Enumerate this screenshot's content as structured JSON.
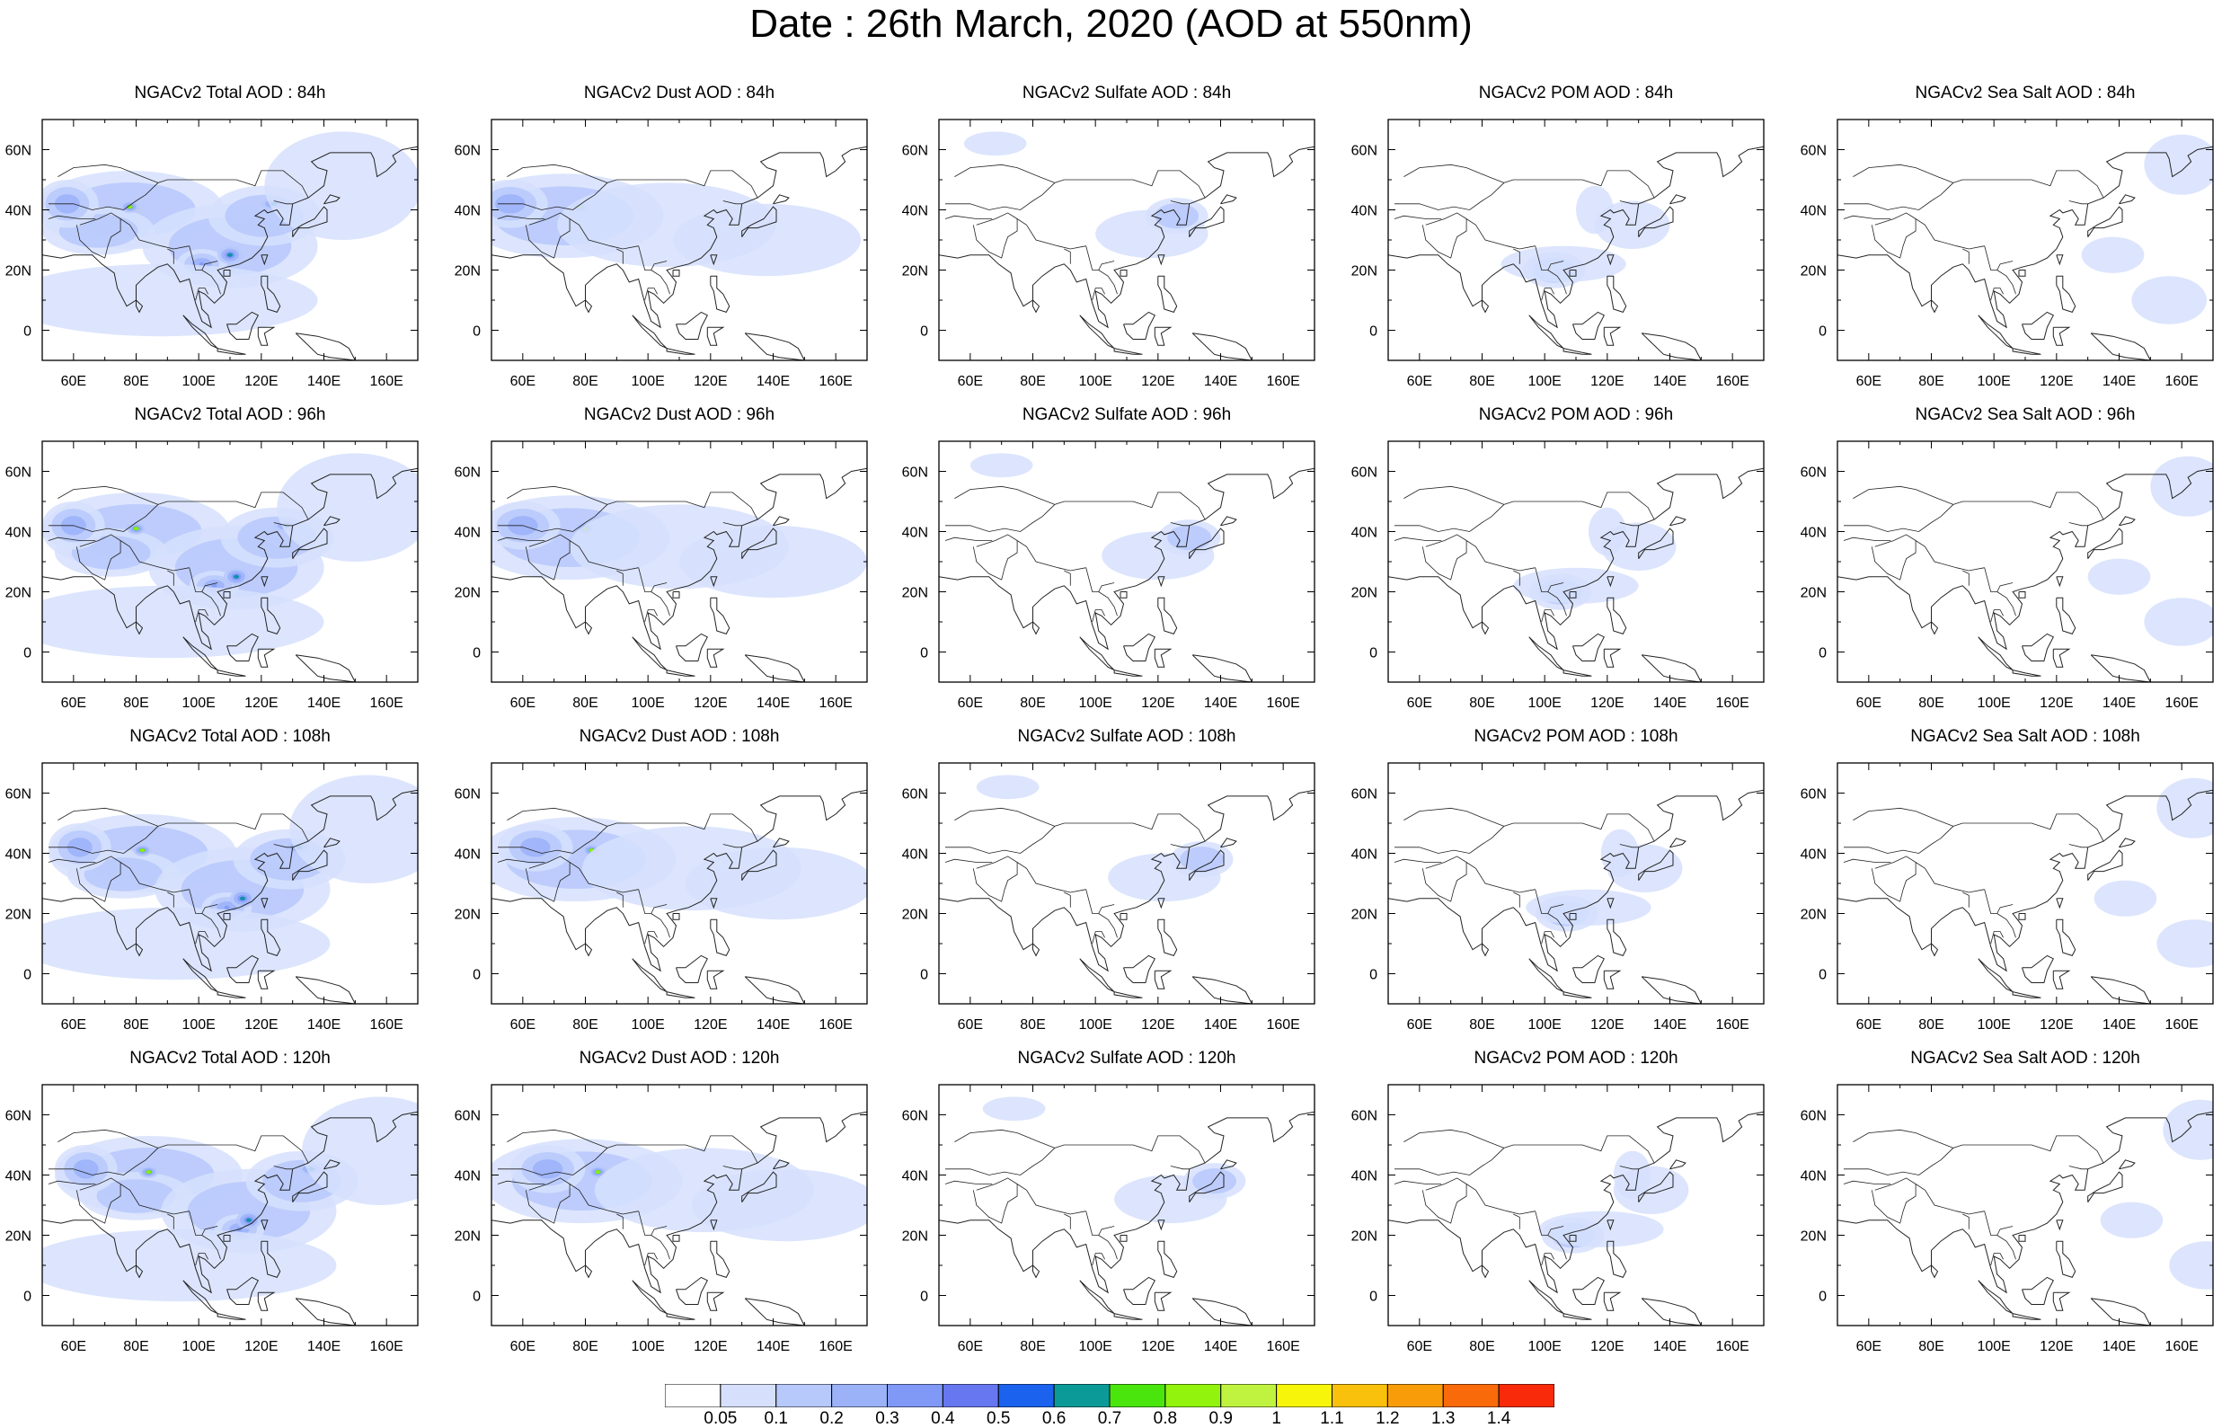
{
  "title": "Date : 26th March, 2020 (AOD at 550nm)",
  "colors": {
    "scale": [
      "#ffffff",
      "#d6e0fd",
      "#b7c8fb",
      "#9bb2f9",
      "#8099f7",
      "#6777f0",
      "#1b63ee",
      "#0c9a99",
      "#4be50e",
      "#92f30c",
      "#c0f340",
      "#f6f50a",
      "#f9c10b",
      "#f99c0a",
      "#f96a0a",
      "#f92a0a"
    ],
    "coast": "#222222"
  },
  "colorbar": {
    "labels": [
      "0.05",
      "0.1",
      "0.2",
      "0.3",
      "0.4",
      "0.5",
      "0.6",
      "0.7",
      "0.8",
      "0.9",
      "1",
      "1.1",
      "1.2",
      "1.3",
      "1.4"
    ]
  },
  "axes": {
    "lon_ticks": [
      "60E",
      "80E",
      "100E",
      "120E",
      "140E",
      "160E"
    ],
    "lat_ticks": [
      "60N",
      "40N",
      "20N",
      "0"
    ],
    "lon_range": [
      50,
      170
    ],
    "lat_range": [
      -10,
      70
    ]
  },
  "panels": [
    {
      "title": "NGACv2 Total AOD : 84h",
      "species": "total",
      "hour": 84
    },
    {
      "title": "NGACv2 Dust AOD : 84h",
      "species": "dust",
      "hour": 84
    },
    {
      "title": "NGACv2 Sulfate AOD : 84h",
      "species": "sulfate",
      "hour": 84
    },
    {
      "title": "NGACv2 POM AOD : 84h",
      "species": "pom",
      "hour": 84
    },
    {
      "title": "NGACv2 Sea Salt AOD : 84h",
      "species": "seasalt",
      "hour": 84
    },
    {
      "title": "NGACv2 Total AOD : 96h",
      "species": "total",
      "hour": 96
    },
    {
      "title": "NGACv2 Dust AOD : 96h",
      "species": "dust",
      "hour": 96
    },
    {
      "title": "NGACv2 Sulfate AOD : 96h",
      "species": "sulfate",
      "hour": 96
    },
    {
      "title": "NGACv2 POM AOD : 96h",
      "species": "pom",
      "hour": 96
    },
    {
      "title": "NGACv2 Sea Salt AOD : 96h",
      "species": "seasalt",
      "hour": 96
    },
    {
      "title": "NGACv2 Total AOD : 108h",
      "species": "total",
      "hour": 108
    },
    {
      "title": "NGACv2 Dust AOD : 108h",
      "species": "dust",
      "hour": 108
    },
    {
      "title": "NGACv2 Sulfate AOD : 108h",
      "species": "sulfate",
      "hour": 108
    },
    {
      "title": "NGACv2 POM AOD : 108h",
      "species": "pom",
      "hour": 108
    },
    {
      "title": "NGACv2 Sea Salt AOD : 108h",
      "species": "seasalt",
      "hour": 108
    },
    {
      "title": "NGACv2 Total AOD : 120h",
      "species": "total",
      "hour": 120
    },
    {
      "title": "NGACv2 Dust AOD : 120h",
      "species": "dust",
      "hour": 120
    },
    {
      "title": "NGACv2 Sulfate AOD : 120h",
      "species": "sulfate",
      "hour": 120
    },
    {
      "title": "NGACv2 POM AOD : 120h",
      "species": "pom",
      "hour": 120
    },
    {
      "title": "NGACv2 Sea Salt  AOD : 120h",
      "species": "seasalt",
      "hour": 120
    }
  ]
}
